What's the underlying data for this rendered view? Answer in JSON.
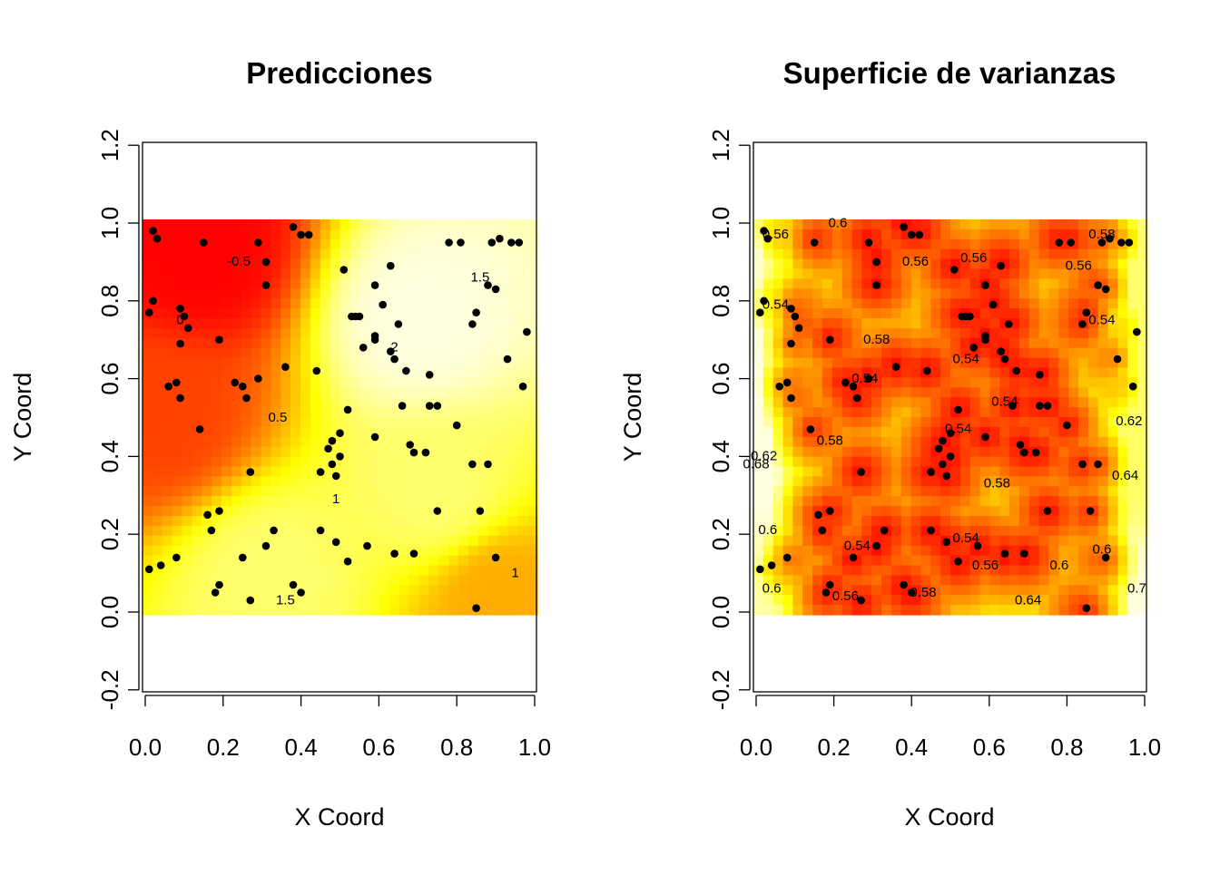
{
  "chart_data": [
    {
      "type": "heatmap",
      "title": "Predicciones",
      "xlabel": "X Coord",
      "ylabel": "Y Coord",
      "xlim": [
        0.0,
        1.0
      ],
      "ylim": [
        -0.2,
        1.2
      ],
      "xticks": [
        "0.0",
        "0.2",
        "0.4",
        "0.6",
        "0.8",
        "1.0"
      ],
      "yticks": [
        "-0.2",
        "0.0",
        "0.2",
        "0.4",
        "0.6",
        "0.8",
        "1.0",
        "1.2"
      ],
      "grid": false,
      "colormap": [
        "#ff0000",
        "#ff8000",
        "#ffff00",
        "#ffffe0"
      ],
      "value_range": [
        -0.8,
        2.1
      ],
      "surface_centers": [
        {
          "x": 0.15,
          "y": 0.92,
          "value": -0.8
        },
        {
          "x": 0.05,
          "y": 0.5,
          "value": -0.3
        },
        {
          "x": 0.7,
          "y": 0.75,
          "value": 2.1
        },
        {
          "x": 0.75,
          "y": 0.3,
          "value": 1.6
        },
        {
          "x": 0.32,
          "y": 0.1,
          "value": 1.6
        },
        {
          "x": 0.9,
          "y": 0.05,
          "value": 0.5
        }
      ],
      "contour_labels": [
        {
          "text": "-0.5",
          "x": 0.24,
          "y": 0.89
        },
        {
          "text": "0",
          "x": 0.09,
          "y": 0.74
        },
        {
          "text": "0.5",
          "x": 0.34,
          "y": 0.49
        },
        {
          "text": "1",
          "x": 0.49,
          "y": 0.28
        },
        {
          "text": "1.5",
          "x": 0.86,
          "y": 0.85
        },
        {
          "text": "2",
          "x": 0.64,
          "y": 0.67
        },
        {
          "text": "1.5",
          "x": 0.36,
          "y": 0.02
        },
        {
          "text": "1",
          "x": 0.95,
          "y": 0.09
        }
      ],
      "points": [
        [
          0.01,
          0.77
        ],
        [
          0.02,
          0.98
        ],
        [
          0.03,
          0.96
        ],
        [
          0.02,
          0.8
        ],
        [
          0.01,
          0.11
        ],
        [
          0.04,
          0.12
        ],
        [
          0.06,
          0.58
        ],
        [
          0.08,
          0.59
        ],
        [
          0.09,
          0.55
        ],
        [
          0.08,
          0.14
        ],
        [
          0.09,
          0.78
        ],
        [
          0.1,
          0.76
        ],
        [
          0.11,
          0.73
        ],
        [
          0.09,
          0.69
        ],
        [
          0.14,
          0.47
        ],
        [
          0.15,
          0.95
        ],
        [
          0.16,
          0.25
        ],
        [
          0.17,
          0.21
        ],
        [
          0.18,
          0.05
        ],
        [
          0.19,
          0.26
        ],
        [
          0.19,
          0.07
        ],
        [
          0.19,
          0.7
        ],
        [
          0.23,
          0.59
        ],
        [
          0.25,
          0.58
        ],
        [
          0.25,
          0.14
        ],
        [
          0.26,
          0.55
        ],
        [
          0.27,
          0.36
        ],
        [
          0.27,
          0.03
        ],
        [
          0.29,
          0.95
        ],
        [
          0.29,
          0.6
        ],
        [
          0.31,
          0.17
        ],
        [
          0.31,
          0.9
        ],
        [
          0.31,
          0.84
        ],
        [
          0.33,
          0.21
        ],
        [
          0.36,
          0.63
        ],
        [
          0.38,
          0.99
        ],
        [
          0.38,
          0.07
        ],
        [
          0.4,
          0.97
        ],
        [
          0.4,
          0.05
        ],
        [
          0.42,
          0.97
        ],
        [
          0.44,
          0.62
        ],
        [
          0.45,
          0.21
        ],
        [
          0.45,
          0.36
        ],
        [
          0.47,
          0.42
        ],
        [
          0.48,
          0.44
        ],
        [
          0.48,
          0.38
        ],
        [
          0.49,
          0.18
        ],
        [
          0.49,
          0.35
        ],
        [
          0.5,
          0.4
        ],
        [
          0.5,
          0.46
        ],
        [
          0.51,
          0.88
        ],
        [
          0.52,
          0.52
        ],
        [
          0.52,
          0.13
        ],
        [
          0.53,
          0.76
        ],
        [
          0.54,
          0.76
        ],
        [
          0.55,
          0.76
        ],
        [
          0.56,
          0.68
        ],
        [
          0.57,
          0.17
        ],
        [
          0.59,
          0.71
        ],
        [
          0.59,
          0.7
        ],
        [
          0.59,
          0.84
        ],
        [
          0.59,
          0.45
        ],
        [
          0.61,
          0.79
        ],
        [
          0.63,
          0.89
        ],
        [
          0.63,
          0.67
        ],
        [
          0.64,
          0.65
        ],
        [
          0.64,
          0.15
        ],
        [
          0.65,
          0.74
        ],
        [
          0.66,
          0.53
        ],
        [
          0.67,
          0.62
        ],
        [
          0.68,
          0.43
        ],
        [
          0.69,
          0.41
        ],
        [
          0.69,
          0.15
        ],
        [
          0.72,
          0.41
        ],
        [
          0.73,
          0.61
        ],
        [
          0.73,
          0.53
        ],
        [
          0.75,
          0.53
        ],
        [
          0.75,
          0.26
        ],
        [
          0.78,
          0.95
        ],
        [
          0.8,
          0.48
        ],
        [
          0.81,
          0.95
        ],
        [
          0.84,
          0.38
        ],
        [
          0.84,
          0.74
        ],
        [
          0.85,
          0.77
        ],
        [
          0.85,
          0.01
        ],
        [
          0.86,
          0.26
        ],
        [
          0.88,
          0.84
        ],
        [
          0.88,
          0.38
        ],
        [
          0.89,
          0.95
        ],
        [
          0.9,
          0.83
        ],
        [
          0.9,
          0.14
        ],
        [
          0.91,
          0.96
        ],
        [
          0.93,
          0.65
        ],
        [
          0.94,
          0.95
        ],
        [
          0.96,
          0.95
        ],
        [
          0.97,
          0.58
        ],
        [
          0.98,
          0.72
        ]
      ]
    },
    {
      "type": "heatmap",
      "title": "Superficie de varianzas",
      "xlabel": "X Coord",
      "ylabel": "Y Coord",
      "xlim": [
        0.0,
        1.0
      ],
      "ylim": [
        -0.2,
        1.2
      ],
      "xticks": [
        "0.0",
        "0.2",
        "0.4",
        "0.6",
        "0.8",
        "1.0"
      ],
      "yticks": [
        "-0.2",
        "0.0",
        "0.2",
        "0.4",
        "0.6",
        "0.8",
        "1.0",
        "1.2"
      ],
      "grid": false,
      "colormap": [
        "#ff0000",
        "#ff8000",
        "#ffff00",
        "#ffffe0"
      ],
      "value_range": [
        0.52,
        0.74
      ],
      "surface_centers": [
        {
          "x": 0.0,
          "y": 0.4,
          "value": 0.74
        },
        {
          "x": 1.0,
          "y": 0.4,
          "value": 0.7
        },
        {
          "x": 0.5,
          "y": 0.0,
          "value": 0.66
        },
        {
          "x": 0.0,
          "y": 0.0,
          "value": 0.72
        },
        {
          "x": 1.0,
          "y": 0.0,
          "value": 0.74
        }
      ],
      "contour_labels": [
        {
          "text": "0.56",
          "x": 0.05,
          "y": 0.96
        },
        {
          "text": "0.6",
          "x": 0.21,
          "y": 0.99
        },
        {
          "text": "0.56",
          "x": 0.41,
          "y": 0.89
        },
        {
          "text": "0.56",
          "x": 0.56,
          "y": 0.9
        },
        {
          "text": "0.58",
          "x": 0.89,
          "y": 0.96
        },
        {
          "text": "0.56",
          "x": 0.83,
          "y": 0.88
        },
        {
          "text": "0.54",
          "x": 0.05,
          "y": 0.78
        },
        {
          "text": "0.58",
          "x": 0.31,
          "y": 0.69
        },
        {
          "text": "0.54",
          "x": 0.54,
          "y": 0.64
        },
        {
          "text": "0.54",
          "x": 0.89,
          "y": 0.74
        },
        {
          "text": "0.54",
          "x": 0.28,
          "y": 0.59
        },
        {
          "text": "0.54",
          "x": 0.64,
          "y": 0.53
        },
        {
          "text": "0.58",
          "x": 0.19,
          "y": 0.43
        },
        {
          "text": "0.54",
          "x": 0.52,
          "y": 0.46
        },
        {
          "text": "0.62",
          "x": 0.96,
          "y": 0.48
        },
        {
          "text": "0.62",
          "x": 0.02,
          "y": 0.39
        },
        {
          "text": "0.68",
          "x": 0.0,
          "y": 0.37
        },
        {
          "text": "0.64",
          "x": 0.95,
          "y": 0.34
        },
        {
          "text": "0.58",
          "x": 0.62,
          "y": 0.32
        },
        {
          "text": "0.6",
          "x": 0.03,
          "y": 0.2
        },
        {
          "text": "0.54",
          "x": 0.26,
          "y": 0.16
        },
        {
          "text": "0.54",
          "x": 0.54,
          "y": 0.18
        },
        {
          "text": "0.56",
          "x": 0.59,
          "y": 0.11
        },
        {
          "text": "0.6",
          "x": 0.78,
          "y": 0.11
        },
        {
          "text": "0.6",
          "x": 0.89,
          "y": 0.15
        },
        {
          "text": "0.6",
          "x": 0.04,
          "y": 0.05
        },
        {
          "text": "0.56",
          "x": 0.23,
          "y": 0.03
        },
        {
          "text": "0.58",
          "x": 0.43,
          "y": 0.04
        },
        {
          "text": "0.64",
          "x": 0.7,
          "y": 0.02
        },
        {
          "text": "0.7",
          "x": 0.98,
          "y": 0.05
        }
      ],
      "points": [
        [
          0.01,
          0.77
        ],
        [
          0.02,
          0.98
        ],
        [
          0.03,
          0.96
        ],
        [
          0.02,
          0.8
        ],
        [
          0.01,
          0.11
        ],
        [
          0.04,
          0.12
        ],
        [
          0.06,
          0.58
        ],
        [
          0.08,
          0.59
        ],
        [
          0.09,
          0.55
        ],
        [
          0.08,
          0.14
        ],
        [
          0.09,
          0.78
        ],
        [
          0.1,
          0.76
        ],
        [
          0.11,
          0.73
        ],
        [
          0.09,
          0.69
        ],
        [
          0.14,
          0.47
        ],
        [
          0.15,
          0.95
        ],
        [
          0.16,
          0.25
        ],
        [
          0.17,
          0.21
        ],
        [
          0.18,
          0.05
        ],
        [
          0.19,
          0.26
        ],
        [
          0.19,
          0.07
        ],
        [
          0.19,
          0.7
        ],
        [
          0.23,
          0.59
        ],
        [
          0.25,
          0.58
        ],
        [
          0.25,
          0.14
        ],
        [
          0.26,
          0.55
        ],
        [
          0.27,
          0.36
        ],
        [
          0.27,
          0.03
        ],
        [
          0.29,
          0.95
        ],
        [
          0.29,
          0.6
        ],
        [
          0.31,
          0.17
        ],
        [
          0.31,
          0.9
        ],
        [
          0.31,
          0.84
        ],
        [
          0.33,
          0.21
        ],
        [
          0.36,
          0.63
        ],
        [
          0.38,
          0.99
        ],
        [
          0.38,
          0.07
        ],
        [
          0.4,
          0.97
        ],
        [
          0.4,
          0.05
        ],
        [
          0.42,
          0.97
        ],
        [
          0.44,
          0.62
        ],
        [
          0.45,
          0.21
        ],
        [
          0.45,
          0.36
        ],
        [
          0.47,
          0.42
        ],
        [
          0.48,
          0.44
        ],
        [
          0.48,
          0.38
        ],
        [
          0.49,
          0.18
        ],
        [
          0.49,
          0.35
        ],
        [
          0.5,
          0.4
        ],
        [
          0.5,
          0.46
        ],
        [
          0.51,
          0.88
        ],
        [
          0.52,
          0.52
        ],
        [
          0.52,
          0.13
        ],
        [
          0.53,
          0.76
        ],
        [
          0.54,
          0.76
        ],
        [
          0.55,
          0.76
        ],
        [
          0.56,
          0.68
        ],
        [
          0.57,
          0.17
        ],
        [
          0.59,
          0.71
        ],
        [
          0.59,
          0.7
        ],
        [
          0.59,
          0.84
        ],
        [
          0.59,
          0.45
        ],
        [
          0.61,
          0.79
        ],
        [
          0.63,
          0.89
        ],
        [
          0.63,
          0.67
        ],
        [
          0.64,
          0.65
        ],
        [
          0.64,
          0.15
        ],
        [
          0.65,
          0.74
        ],
        [
          0.66,
          0.53
        ],
        [
          0.67,
          0.62
        ],
        [
          0.68,
          0.43
        ],
        [
          0.69,
          0.41
        ],
        [
          0.69,
          0.15
        ],
        [
          0.72,
          0.41
        ],
        [
          0.73,
          0.61
        ],
        [
          0.73,
          0.53
        ],
        [
          0.75,
          0.53
        ],
        [
          0.75,
          0.26
        ],
        [
          0.78,
          0.95
        ],
        [
          0.8,
          0.48
        ],
        [
          0.81,
          0.95
        ],
        [
          0.84,
          0.38
        ],
        [
          0.84,
          0.74
        ],
        [
          0.85,
          0.77
        ],
        [
          0.85,
          0.01
        ],
        [
          0.86,
          0.26
        ],
        [
          0.88,
          0.84
        ],
        [
          0.88,
          0.38
        ],
        [
          0.89,
          0.95
        ],
        [
          0.9,
          0.83
        ],
        [
          0.9,
          0.14
        ],
        [
          0.91,
          0.96
        ],
        [
          0.93,
          0.65
        ],
        [
          0.94,
          0.95
        ],
        [
          0.96,
          0.95
        ],
        [
          0.97,
          0.58
        ],
        [
          0.98,
          0.72
        ]
      ]
    }
  ]
}
